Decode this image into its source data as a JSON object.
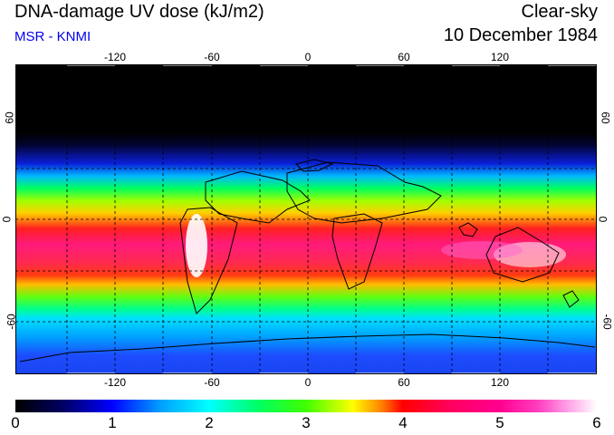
{
  "header": {
    "title": "DNA-damage UV dose (kJ/m2)",
    "subtitle": "MSR - KNMI",
    "condition": "Clear-sky",
    "date": "10 December 1984"
  },
  "map": {
    "lon_ticks": [
      "-120",
      "-60",
      "0",
      "60",
      "120"
    ],
    "lat_ticks": [
      "60",
      "0",
      "-60"
    ]
  },
  "colorbar": {
    "labels": [
      "0",
      "1",
      "2",
      "3",
      "4",
      "5",
      "6"
    ],
    "min": 0,
    "max": 6
  },
  "colors": {
    "subtitle": "#0000ee"
  }
}
